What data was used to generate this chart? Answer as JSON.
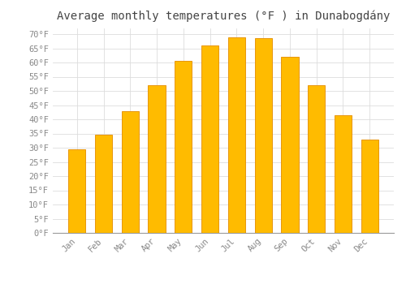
{
  "title": "Average monthly temperatures (°F ) in Dunabogdány",
  "months": [
    "Jan",
    "Feb",
    "Mar",
    "Apr",
    "May",
    "Jun",
    "Jul",
    "Aug",
    "Sep",
    "Oct",
    "Nov",
    "Dec"
  ],
  "values": [
    29.5,
    34.5,
    43.0,
    52.0,
    60.5,
    66.0,
    69.0,
    68.5,
    62.0,
    52.0,
    41.5,
    33.0
  ],
  "bar_color_top": "#FFBB00",
  "bar_color_bottom": "#FFAA00",
  "bar_edge_color": "#E8960C",
  "background_color": "#FFFFFF",
  "grid_color": "#DDDDDD",
  "ylim": [
    0,
    72
  ],
  "ytick_values": [
    0,
    5,
    10,
    15,
    20,
    25,
    30,
    35,
    40,
    45,
    50,
    55,
    60,
    65,
    70
  ],
  "tick_label_color": "#888888",
  "title_color": "#444444",
  "title_fontsize": 10,
  "bar_width": 0.65
}
